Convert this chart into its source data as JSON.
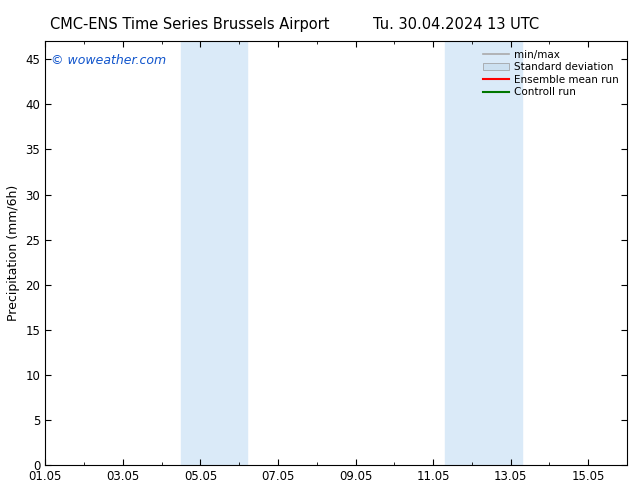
{
  "title_left": "CMC-ENS Time Series Brussels Airport",
  "title_right": "Tu. 30.04.2024 13 UTC",
  "ylabel": "Precipitation (mm/6h)",
  "watermark": "© woweather.com",
  "ylim": [
    0,
    47
  ],
  "yticks": [
    0,
    5,
    10,
    15,
    20,
    25,
    30,
    35,
    40,
    45
  ],
  "xtick_labels": [
    "01.05",
    "03.05",
    "05.05",
    "07.05",
    "09.05",
    "11.05",
    "13.05",
    "15.05"
  ],
  "xtick_positions": [
    0,
    2,
    4,
    6,
    8,
    10,
    12,
    14
  ],
  "xlim": [
    0,
    15
  ],
  "bg_color": "#ffffff",
  "plot_bg_color": "#ffffff",
  "shaded_regions": [
    {
      "x_start": 3.5,
      "x_end": 5.2,
      "color": "#daeaf8"
    },
    {
      "x_start": 10.3,
      "x_end": 12.3,
      "color": "#daeaf8"
    }
  ],
  "legend_entries": [
    {
      "label": "min/max",
      "color": "#aaaaaa",
      "lw": 1.2,
      "type": "line"
    },
    {
      "label": "Standard deviation",
      "color": "#cce0f0",
      "lw": 6,
      "type": "patch"
    },
    {
      "label": "Ensemble mean run",
      "color": "#ff0000",
      "lw": 1.5,
      "type": "line"
    },
    {
      "label": "Controll run",
      "color": "#007700",
      "lw": 1.5,
      "type": "line"
    }
  ],
  "title_fontsize": 10.5,
  "label_fontsize": 9,
  "tick_fontsize": 8.5,
  "watermark_color": "#1155cc",
  "watermark_fontsize": 9,
  "spine_color": "#000000"
}
